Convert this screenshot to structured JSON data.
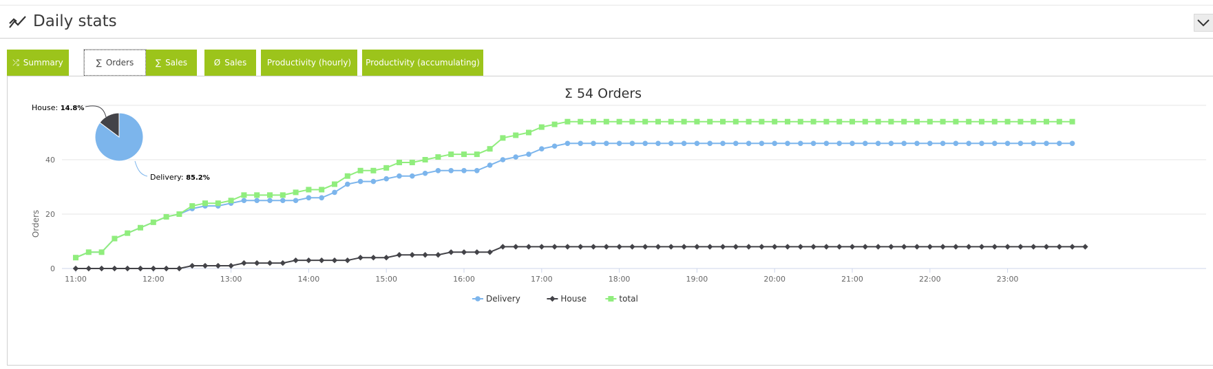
{
  "header": {
    "title": "Daily stats",
    "title_icon": "trend-line-icon",
    "collapse_icon": "chevron-down-icon"
  },
  "tabs": [
    {
      "label": "Summary",
      "icon": "⤮",
      "active": false
    },
    {
      "label": "Orders",
      "icon": "∑",
      "active": true
    },
    {
      "label": "Sales",
      "icon": "∑",
      "active": false
    },
    {
      "label": "Sales",
      "icon": "Ø",
      "active": false
    },
    {
      "label": "Productivity (hourly)",
      "icon": "",
      "active": false
    },
    {
      "label": "Productivity (accumulating)",
      "icon": "",
      "active": false
    }
  ],
  "colors": {
    "accent": "#9cc41b",
    "delivery": "#7cb5ec",
    "house": "#434348",
    "total": "#90ed7d"
  },
  "chart_data": {
    "type": "line",
    "title": "Σ 54 Orders",
    "ylabel": "Orders",
    "ylim": [
      0,
      60
    ],
    "yticks": [
      0,
      20,
      40
    ],
    "x_start": "11:00",
    "x_step_minutes": 10,
    "xticks": [
      "11:00",
      "12:00",
      "13:00",
      "14:00",
      "15:00",
      "16:00",
      "17:00",
      "18:00",
      "19:00",
      "20:00",
      "21:00",
      "22:00",
      "23:00"
    ],
    "legend_position": "bottom-center",
    "series": [
      {
        "name": "Delivery",
        "marker": "circle",
        "values": [
          4,
          6,
          6,
          11,
          13,
          15,
          17,
          19,
          20,
          22,
          23,
          23,
          24,
          25,
          25,
          25,
          25,
          25,
          26,
          26,
          28,
          31,
          32,
          32,
          33,
          34,
          34,
          35,
          36,
          36,
          36,
          36,
          38,
          40,
          41,
          42,
          44,
          45,
          46,
          46,
          46,
          46,
          46,
          46,
          46,
          46,
          46,
          46,
          46,
          46,
          46,
          46,
          46,
          46,
          46,
          46,
          46,
          46,
          46,
          46,
          46,
          46,
          46,
          46,
          46,
          46,
          46,
          46,
          46,
          46,
          46,
          46,
          46,
          46,
          46,
          46,
          46,
          46
        ]
      },
      {
        "name": "House",
        "marker": "diamond",
        "values": [
          0,
          0,
          0,
          0,
          0,
          0,
          0,
          0,
          0,
          1,
          1,
          1,
          1,
          2,
          2,
          2,
          2,
          3,
          3,
          3,
          3,
          3,
          4,
          4,
          4,
          5,
          5,
          5,
          5,
          6,
          6,
          6,
          6,
          8,
          8,
          8,
          8,
          8,
          8,
          8,
          8,
          8,
          8,
          8,
          8,
          8,
          8,
          8,
          8,
          8,
          8,
          8,
          8,
          8,
          8,
          8,
          8,
          8,
          8,
          8,
          8,
          8,
          8,
          8,
          8,
          8,
          8,
          8,
          8,
          8,
          8,
          8,
          8,
          8,
          8,
          8,
          8,
          8,
          8
        ]
      },
      {
        "name": "total",
        "marker": "square",
        "values": [
          4,
          6,
          6,
          11,
          13,
          15,
          17,
          19,
          20,
          23,
          24,
          24,
          25,
          27,
          27,
          27,
          27,
          28,
          29,
          29,
          31,
          34,
          36,
          36,
          37,
          39,
          39,
          40,
          41,
          42,
          42,
          42,
          44,
          48,
          49,
          50,
          52,
          53,
          54,
          54,
          54,
          54,
          54,
          54,
          54,
          54,
          54,
          54,
          54,
          54,
          54,
          54,
          54,
          54,
          54,
          54,
          54,
          54,
          54,
          54,
          54,
          54,
          54,
          54,
          54,
          54,
          54,
          54,
          54,
          54,
          54,
          54,
          54,
          54,
          54,
          54,
          54,
          54
        ]
      }
    ],
    "pie": {
      "slices": [
        {
          "name": "Delivery",
          "percent": "85.2%",
          "value": 85.2
        },
        {
          "name": "House",
          "percent": "14.8%",
          "value": 14.8
        }
      ]
    }
  }
}
